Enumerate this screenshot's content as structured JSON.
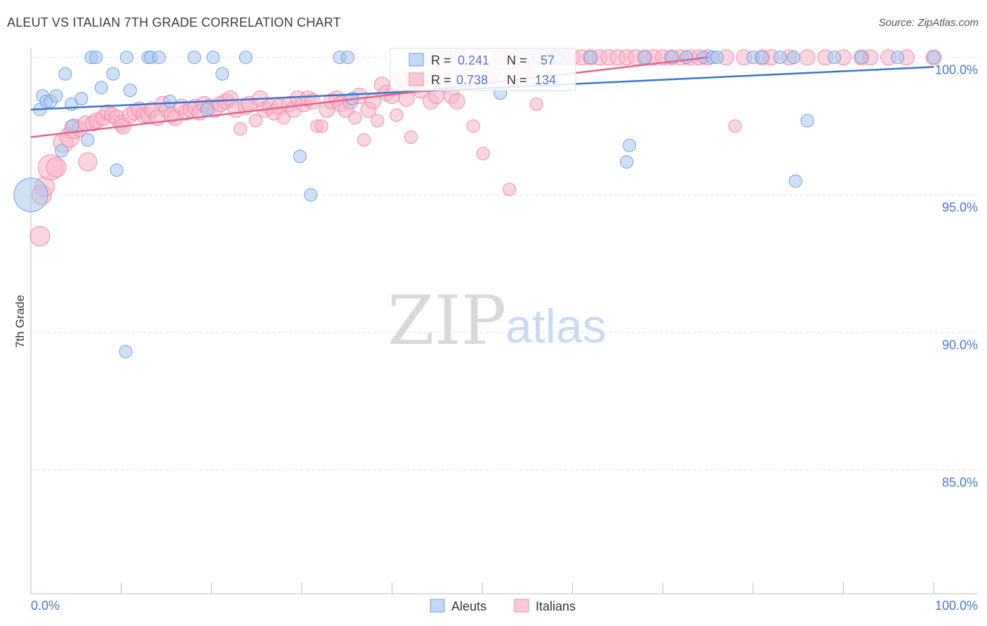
{
  "title": "ALEUT VS ITALIAN 7TH GRADE CORRELATION CHART",
  "source": "Source: ZipAtlas.com",
  "watermark": {
    "zip": "ZIP",
    "atlas": "atlas"
  },
  "colors": {
    "aleut_fill": "#a9c8f0",
    "aleut_stroke": "#6f9fe0",
    "aleut_line": "#3a74d0",
    "italian_fill": "#f7b4c8",
    "italian_stroke": "#ee8aaa",
    "italian_line": "#e0668f",
    "accent_text": "#4a78c8",
    "grid": "#dddddd"
  },
  "chart_data": {
    "type": "scatter",
    "title": "ALEUT VS ITALIAN 7TH GRADE CORRELATION CHART",
    "xlabel": "",
    "ylabel": "7th Grade",
    "xlim": [
      0,
      100
    ],
    "ylim": [
      80.5,
      100.35
    ],
    "x_tick_labels": [
      "0.0%",
      "100.0%"
    ],
    "y_ticks": [
      85,
      90,
      95,
      100
    ],
    "y_tick_labels": [
      "85.0%",
      "90.0%",
      "95.0%",
      "100.0%"
    ],
    "legend_stats": [
      {
        "r_label": "R =",
        "r_value": "0.241",
        "n_label": "N =",
        "n_value": "57"
      },
      {
        "r_label": "R =",
        "r_value": "0.738",
        "n_label": "N =",
        "n_value": "134"
      }
    ],
    "series": [
      {
        "name": "Aleuts",
        "trend": [
          [
            0,
            98.1
          ],
          [
            100,
            99.65
          ]
        ],
        "points": [
          [
            0.0,
            95.0,
            24
          ],
          [
            1.0,
            98.1,
            9
          ],
          [
            1.3,
            98.6,
            9
          ],
          [
            1.7,
            98.4,
            9
          ],
          [
            2.2,
            98.4,
            9
          ],
          [
            2.8,
            98.6,
            9
          ],
          [
            3.4,
            96.6,
            9
          ],
          [
            3.8,
            99.4,
            9
          ],
          [
            4.5,
            98.3,
            9
          ],
          [
            4.6,
            97.5,
            9
          ],
          [
            5.6,
            98.5,
            9
          ],
          [
            6.3,
            97.0,
            9
          ],
          [
            6.7,
            100.0,
            9
          ],
          [
            7.2,
            100.0,
            9
          ],
          [
            7.8,
            98.9,
            9
          ],
          [
            9.1,
            99.4,
            9
          ],
          [
            9.5,
            95.9,
            9
          ],
          [
            10.5,
            89.3,
            9
          ],
          [
            10.6,
            100.0,
            9
          ],
          [
            11.0,
            98.8,
            9
          ],
          [
            13.0,
            100.0,
            9
          ],
          [
            13.3,
            100.0,
            9
          ],
          [
            14.2,
            100.0,
            9
          ],
          [
            15.4,
            98.4,
            9
          ],
          [
            18.1,
            100.0,
            9
          ],
          [
            19.5,
            98.1,
            9
          ],
          [
            20.2,
            100.0,
            9
          ],
          [
            21.2,
            99.4,
            9
          ],
          [
            23.8,
            100.0,
            9
          ],
          [
            29.8,
            96.4,
            9
          ],
          [
            31.0,
            95.0,
            9
          ],
          [
            34.2,
            100.0,
            9
          ],
          [
            35.1,
            100.0,
            9
          ],
          [
            35.6,
            98.5,
            9
          ],
          [
            44.0,
            100.0,
            9
          ],
          [
            46.0,
            100.0,
            9
          ],
          [
            52.0,
            98.7,
            9
          ],
          [
            55.0,
            100.0,
            9
          ],
          [
            57.8,
            100.0,
            9
          ],
          [
            58.3,
            100.0,
            9
          ],
          [
            62.0,
            100.0,
            9
          ],
          [
            66.0,
            96.2,
            9
          ],
          [
            66.3,
            96.8,
            9
          ],
          [
            68.0,
            100.0,
            9
          ],
          [
            71.0,
            100.0,
            9
          ],
          [
            72.6,
            100.0,
            9
          ],
          [
            74.5,
            100.0,
            9
          ],
          [
            75.5,
            100.0,
            9
          ],
          [
            76.0,
            100.0,
            9
          ],
          [
            80.0,
            100.0,
            9
          ],
          [
            81.0,
            100.0,
            9
          ],
          [
            83.0,
            100.0,
            9
          ],
          [
            84.5,
            100.0,
            9
          ],
          [
            84.7,
            95.5,
            9
          ],
          [
            86.0,
            97.7,
            9
          ],
          [
            89.0,
            100.0,
            9
          ],
          [
            92.0,
            100.0,
            9
          ],
          [
            96.0,
            100.0,
            9
          ],
          [
            100.0,
            100.0,
            9
          ]
        ]
      },
      {
        "name": "Italians",
        "trend": [
          [
            0,
            97.1
          ],
          [
            75,
            100.0
          ]
        ],
        "points": [
          [
            1.0,
            93.5,
            14
          ],
          [
            1.2,
            95.0,
            14
          ],
          [
            1.5,
            95.3,
            14
          ],
          [
            2.2,
            96.0,
            18
          ],
          [
            2.8,
            96.0,
            14
          ],
          [
            3.6,
            96.9,
            14
          ],
          [
            4.3,
            97.1,
            14
          ],
          [
            4.8,
            97.4,
            14
          ],
          [
            5.4,
            97.4,
            11
          ],
          [
            6.1,
            97.6,
            11
          ],
          [
            6.3,
            96.2,
            13
          ],
          [
            6.9,
            97.6,
            11
          ],
          [
            7.3,
            97.7,
            11
          ],
          [
            8.0,
            97.8,
            11
          ],
          [
            8.5,
            98.0,
            11
          ],
          [
            9.0,
            97.9,
            11
          ],
          [
            9.5,
            97.8,
            11
          ],
          [
            10.0,
            97.6,
            11
          ],
          [
            10.2,
            97.5,
            11
          ],
          [
            11.0,
            97.9,
            11
          ],
          [
            11.5,
            98.0,
            11
          ],
          [
            12.0,
            98.1,
            11
          ],
          [
            12.5,
            97.9,
            11
          ],
          [
            13.0,
            97.9,
            11
          ],
          [
            13.4,
            98.1,
            11
          ],
          [
            14.0,
            97.8,
            11
          ],
          [
            14.6,
            98.3,
            11
          ],
          [
            15.1,
            98.1,
            11
          ],
          [
            15.6,
            97.9,
            11
          ],
          [
            16.0,
            97.8,
            11
          ],
          [
            16.7,
            98.2,
            11
          ],
          [
            17.2,
            98.0,
            11
          ],
          [
            17.7,
            98.1,
            11
          ],
          [
            18.2,
            98.2,
            11
          ],
          [
            18.7,
            98.0,
            11
          ],
          [
            19.2,
            98.3,
            11
          ],
          [
            19.8,
            98.2,
            11
          ],
          [
            20.4,
            98.1,
            11
          ],
          [
            21.0,
            98.3,
            11
          ],
          [
            21.6,
            98.4,
            11
          ],
          [
            22.1,
            98.5,
            11
          ],
          [
            22.7,
            98.1,
            11
          ],
          [
            23.2,
            97.4,
            9
          ],
          [
            23.8,
            98.2,
            11
          ],
          [
            24.2,
            98.3,
            11
          ],
          [
            24.9,
            97.7,
            9
          ],
          [
            25.4,
            98.5,
            11
          ],
          [
            25.9,
            98.1,
            11
          ],
          [
            26.5,
            98.2,
            11
          ],
          [
            27.0,
            98.0,
            11
          ],
          [
            27.5,
            98.2,
            11
          ],
          [
            28.0,
            97.8,
            9
          ],
          [
            28.6,
            98.3,
            11
          ],
          [
            29.1,
            98.1,
            11
          ],
          [
            29.6,
            98.5,
            11
          ],
          [
            30.2,
            98.3,
            11
          ],
          [
            30.7,
            98.5,
            11
          ],
          [
            31.2,
            98.4,
            11
          ],
          [
            31.7,
            97.5,
            9
          ],
          [
            32.2,
            97.5,
            9
          ],
          [
            32.8,
            98.1,
            11
          ],
          [
            33.3,
            98.4,
            11
          ],
          [
            33.9,
            98.5,
            11
          ],
          [
            34.3,
            98.3,
            11
          ],
          [
            34.9,
            98.1,
            11
          ],
          [
            35.4,
            98.4,
            11
          ],
          [
            35.9,
            97.8,
            9
          ],
          [
            36.4,
            98.6,
            11
          ],
          [
            36.9,
            97.0,
            9
          ],
          [
            37.4,
            98.1,
            11
          ],
          [
            37.9,
            98.4,
            11
          ],
          [
            38.4,
            97.7,
            9
          ],
          [
            38.9,
            99.0,
            11
          ],
          [
            39.4,
            98.7,
            11
          ],
          [
            40.0,
            98.6,
            11
          ],
          [
            40.5,
            97.9,
            9
          ],
          [
            41.0,
            99.2,
            11
          ],
          [
            41.6,
            98.5,
            11
          ],
          [
            42.1,
            97.1,
            9
          ],
          [
            42.7,
            99.0,
            11
          ],
          [
            43.2,
            98.8,
            11
          ],
          [
            43.8,
            99.3,
            11
          ],
          [
            44.3,
            98.4,
            11
          ],
          [
            44.9,
            98.6,
            11
          ],
          [
            45.5,
            99.5,
            11
          ],
          [
            46.0,
            99.0,
            11
          ],
          [
            46.6,
            98.6,
            11
          ],
          [
            47.2,
            98.4,
            11
          ],
          [
            47.7,
            100.0,
            11
          ],
          [
            48.3,
            99.3,
            11
          ],
          [
            49.0,
            97.5,
            9
          ],
          [
            49.5,
            100.0,
            11
          ],
          [
            50.1,
            96.5,
            9
          ],
          [
            51.0,
            99.4,
            11
          ],
          [
            52.0,
            100.0,
            11
          ],
          [
            53.0,
            95.2,
            9
          ],
          [
            54.0,
            100.0,
            11
          ],
          [
            55.0,
            99.5,
            11
          ],
          [
            56.0,
            98.3,
            9
          ],
          [
            56.5,
            100.0,
            11
          ],
          [
            57.2,
            100.0,
            11
          ],
          [
            58.0,
            100.0,
            11
          ],
          [
            58.8,
            100.0,
            11
          ],
          [
            59.5,
            100.0,
            11
          ],
          [
            60.0,
            100.0,
            11
          ],
          [
            61.0,
            100.0,
            11
          ],
          [
            62.0,
            100.0,
            11
          ],
          [
            63.0,
            100.0,
            11
          ],
          [
            64.0,
            100.0,
            11
          ],
          [
            65.0,
            100.0,
            11
          ],
          [
            66.0,
            100.0,
            11
          ],
          [
            67.0,
            100.0,
            11
          ],
          [
            68.0,
            100.0,
            11
          ],
          [
            69.0,
            100.0,
            11
          ],
          [
            70.0,
            100.0,
            11
          ],
          [
            71.0,
            100.0,
            11
          ],
          [
            72.0,
            100.0,
            11
          ],
          [
            73.0,
            100.0,
            11
          ],
          [
            74.0,
            100.0,
            11
          ],
          [
            75.0,
            100.0,
            11
          ],
          [
            77.0,
            100.0,
            11
          ],
          [
            78.0,
            97.5,
            9
          ],
          [
            79.0,
            100.0,
            11
          ],
          [
            81.0,
            100.0,
            11
          ],
          [
            82.0,
            100.0,
            11
          ],
          [
            84.0,
            100.0,
            11
          ],
          [
            86.0,
            100.0,
            11
          ],
          [
            88.0,
            100.0,
            11
          ],
          [
            90.0,
            100.0,
            11
          ],
          [
            92.0,
            100.0,
            11
          ],
          [
            93.0,
            100.0,
            11
          ],
          [
            95.0,
            100.0,
            11
          ],
          [
            97.0,
            100.0,
            11
          ],
          [
            100.0,
            100.0,
            11
          ]
        ]
      }
    ]
  }
}
